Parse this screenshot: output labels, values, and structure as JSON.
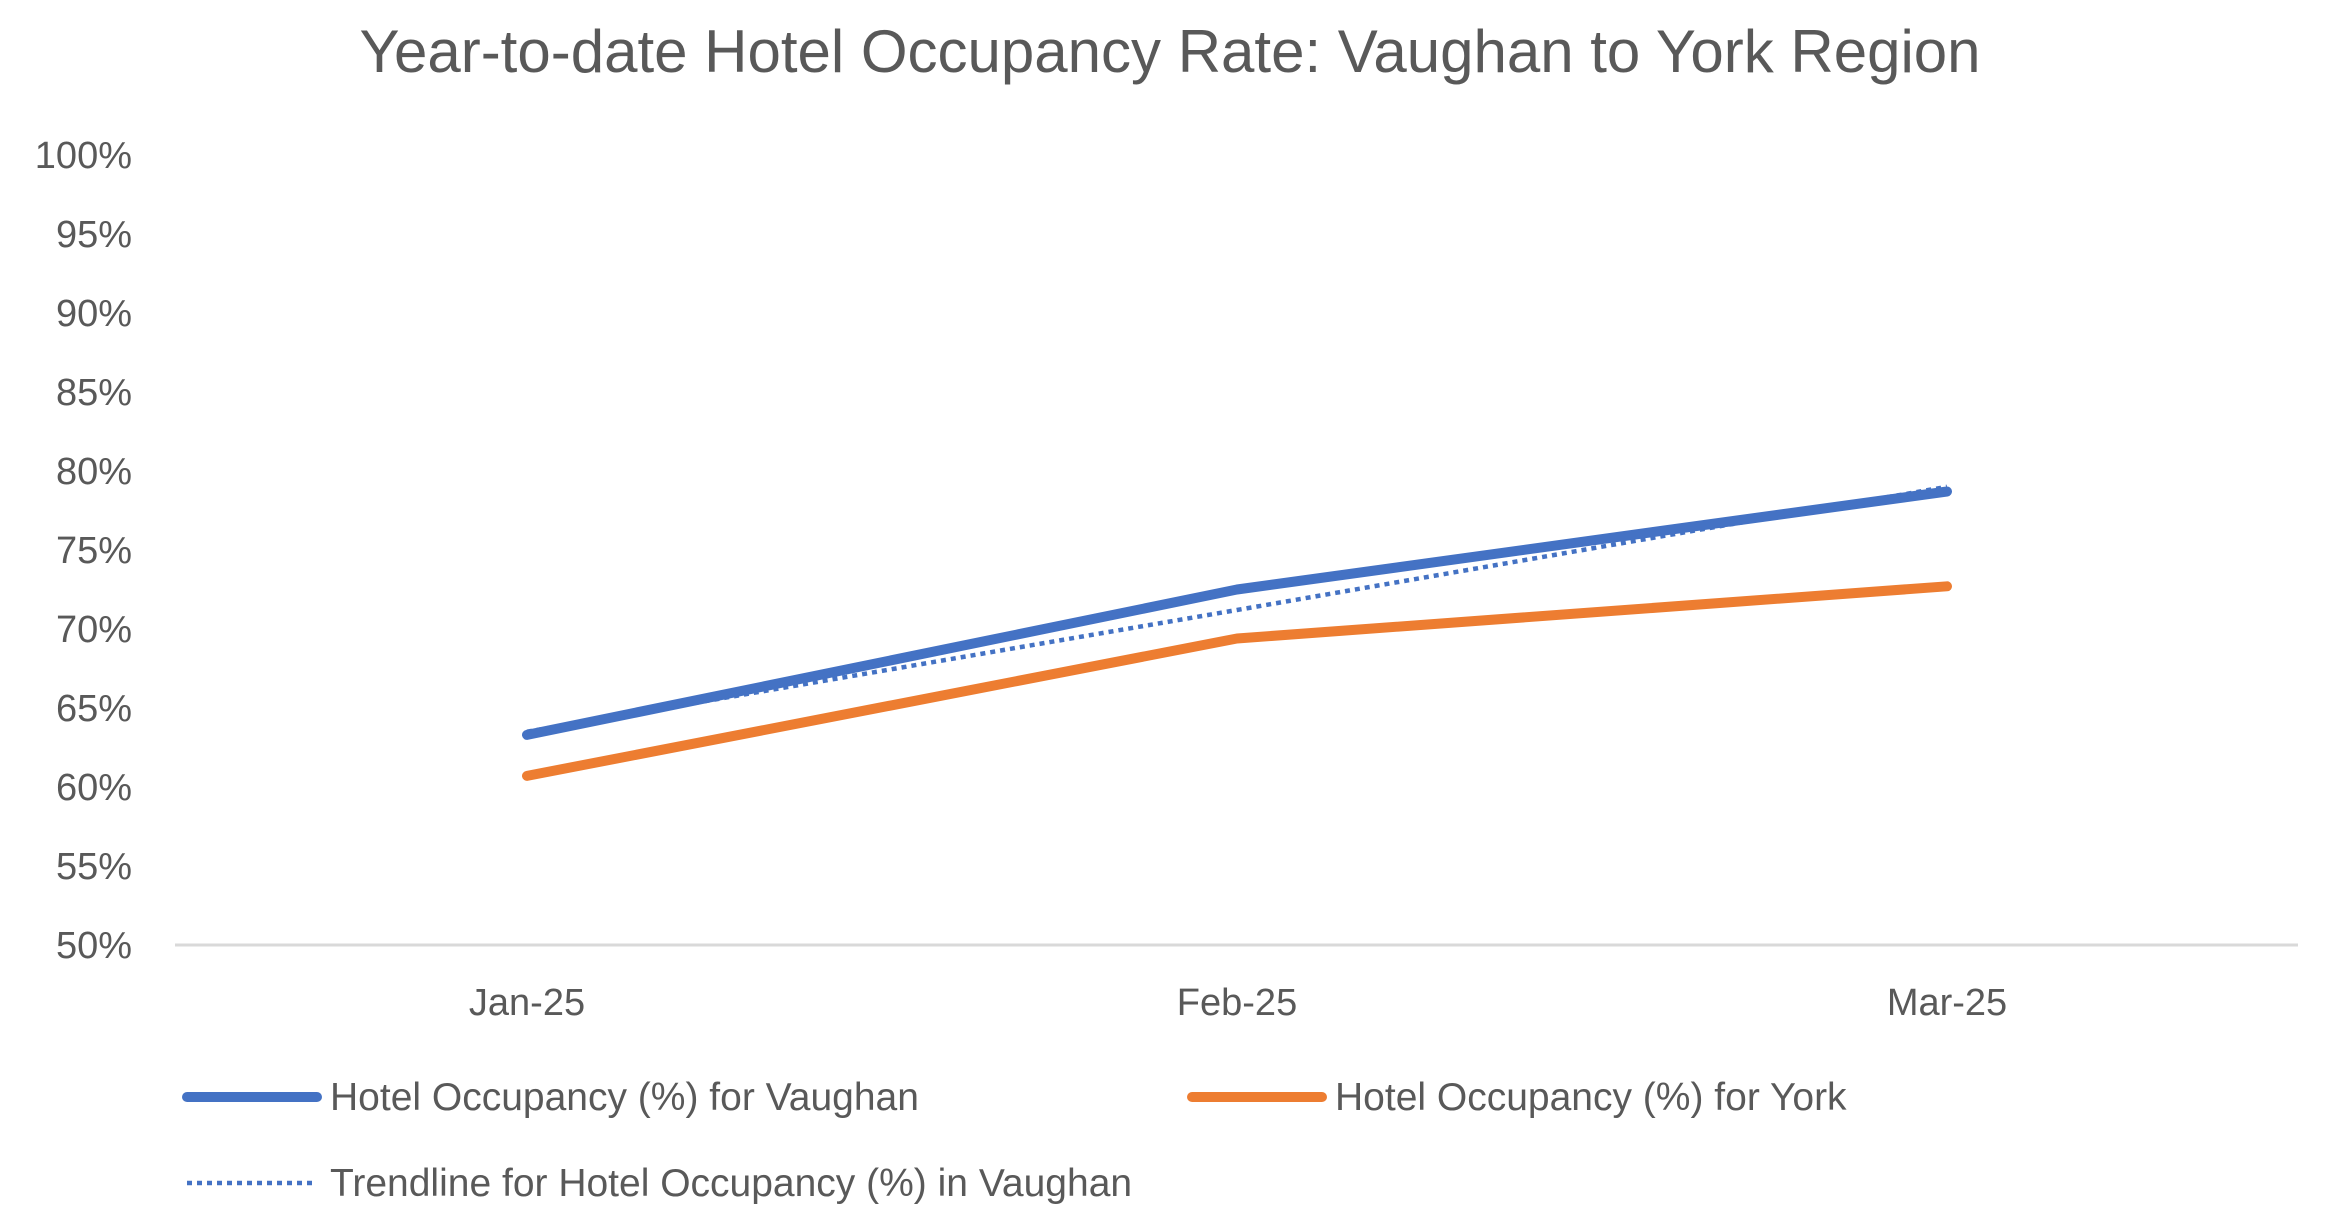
{
  "chart_data": {
    "type": "line",
    "title": "Year-to-date Hotel Occupancy Rate: Vaughan to York Region",
    "xlabel": "",
    "ylabel": "",
    "categories": [
      "Jan-25",
      "Feb-25",
      "Mar-25"
    ],
    "ylim": [
      0.5,
      1.0
    ],
    "y_ticks": [
      {
        "value": 0.5,
        "label": "50%"
      },
      {
        "value": 0.55,
        "label": "55%"
      },
      {
        "value": 0.6,
        "label": "60%"
      },
      {
        "value": 0.65,
        "label": "65%"
      },
      {
        "value": 0.7,
        "label": "70%"
      },
      {
        "value": 0.75,
        "label": "75%"
      },
      {
        "value": 0.8,
        "label": "80%"
      },
      {
        "value": 0.85,
        "label": "85%"
      },
      {
        "value": 0.9,
        "label": "90%"
      },
      {
        "value": 0.95,
        "label": "95%"
      },
      {
        "value": 1.0,
        "label": "100%"
      }
    ],
    "grid": false,
    "legend_position": "bottom",
    "series": [
      {
        "name": "Hotel Occupancy (%) for Vaughan",
        "values": [
          0.633,
          0.725,
          0.787
        ],
        "color": "#4472C4",
        "style": "solid"
      },
      {
        "name": "Hotel Occupancy (%) for York",
        "values": [
          0.607,
          0.694,
          0.727
        ],
        "color": "#ED7D31",
        "style": "solid"
      },
      {
        "name": "Trendline for Hotel Occupancy (%) in Vaughan",
        "values": [
          0.635,
          0.712,
          0.79
        ],
        "color": "#4472C4",
        "style": "dotted"
      }
    ]
  }
}
